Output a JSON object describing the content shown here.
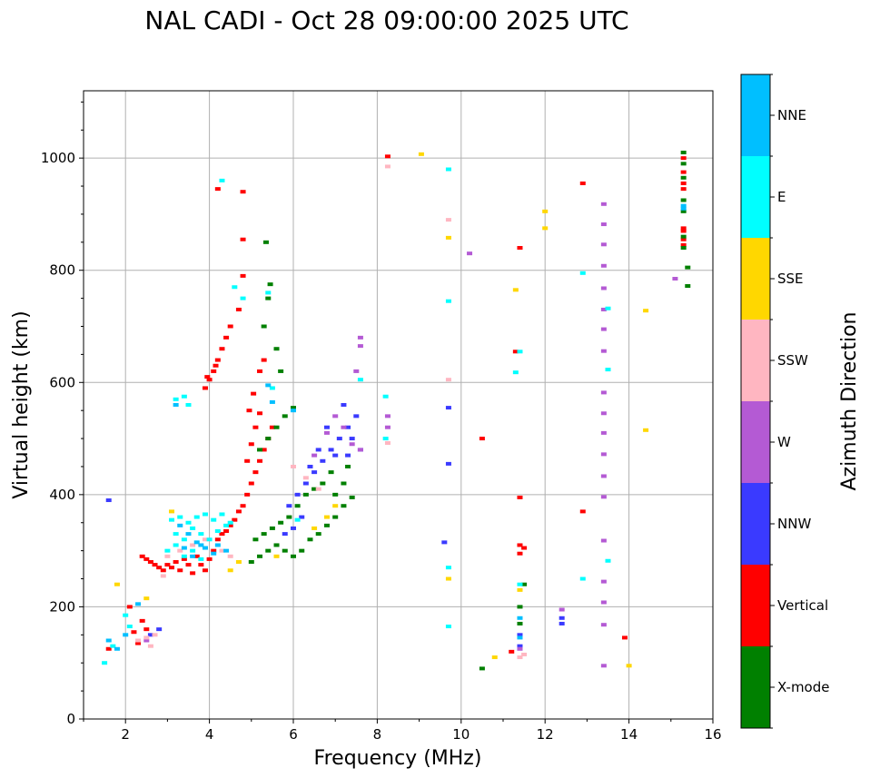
{
  "chart_data": {
    "type": "scatter",
    "title": "NAL CADI - Oct 28 09:00:00 2025 UTC",
    "xlabel": "Frequency (MHz)",
    "ylabel": "Virtual height (km)",
    "xlim": [
      1,
      16
    ],
    "ylim": [
      0,
      1120
    ],
    "xticks": [
      2,
      4,
      6,
      8,
      10,
      12,
      14,
      16
    ],
    "yticks": [
      0,
      200,
      400,
      600,
      800,
      1000
    ],
    "grid": true,
    "colorbar": {
      "title": "Azimuth Direction",
      "categories": [
        "X-mode",
        "Vertical",
        "NNW",
        "W",
        "SSW",
        "SSE",
        "E",
        "NNE"
      ],
      "colors": [
        "#008000",
        "#ff0000",
        "#3a3aff",
        "#b45ad4",
        "#ffb6c1",
        "#ffd700",
        "#00ffff",
        "#00bfff"
      ]
    },
    "series": [
      {
        "name": "Vertical",
        "points": [
          [
            2.4,
            290
          ],
          [
            2.5,
            285
          ],
          [
            2.6,
            280
          ],
          [
            2.7,
            275
          ],
          [
            2.8,
            270
          ],
          [
            2.9,
            265
          ],
          [
            3.0,
            275
          ],
          [
            3.1,
            270
          ],
          [
            3.2,
            280
          ],
          [
            3.3,
            265
          ],
          [
            3.4,
            285
          ],
          [
            3.5,
            275
          ],
          [
            3.6,
            260
          ],
          [
            3.7,
            290
          ],
          [
            3.8,
            275
          ],
          [
            3.9,
            265
          ],
          [
            4.0,
            285
          ],
          [
            4.1,
            300
          ],
          [
            4.2,
            320
          ],
          [
            4.3,
            330
          ],
          [
            4.4,
            335
          ],
          [
            4.5,
            345
          ],
          [
            4.6,
            355
          ],
          [
            4.7,
            370
          ],
          [
            4.8,
            380
          ],
          [
            4.9,
            400
          ],
          [
            5.0,
            420
          ],
          [
            5.1,
            440
          ],
          [
            5.2,
            460
          ],
          [
            5.3,
            480
          ],
          [
            5.4,
            500
          ],
          [
            5.5,
            520
          ],
          [
            4.9,
            460
          ],
          [
            5.0,
            490
          ],
          [
            5.1,
            520
          ],
          [
            5.2,
            545
          ],
          [
            4.95,
            550
          ],
          [
            5.05,
            580
          ],
          [
            5.2,
            620
          ],
          [
            5.3,
            640
          ],
          [
            3.9,
            590
          ],
          [
            4.0,
            605
          ],
          [
            4.1,
            620
          ],
          [
            4.2,
            640
          ],
          [
            4.3,
            660
          ],
          [
            4.4,
            680
          ],
          [
            4.5,
            700
          ],
          [
            4.7,
            730
          ],
          [
            3.95,
            610
          ],
          [
            4.15,
            630
          ],
          [
            4.2,
            945
          ],
          [
            4.8,
            940
          ],
          [
            4.8,
            855
          ],
          [
            4.8,
            790
          ],
          [
            11.4,
            840
          ],
          [
            11.3,
            655
          ],
          [
            10.5,
            500
          ],
          [
            12.9,
            955
          ],
          [
            12.9,
            370
          ],
          [
            13.9,
            145
          ],
          [
            11.4,
            310
          ],
          [
            11.5,
            305
          ],
          [
            11.4,
            295
          ],
          [
            11.4,
            395
          ],
          [
            11.2,
            120
          ],
          [
            8.25,
            1003
          ],
          [
            15.3,
            1000
          ],
          [
            15.3,
            975
          ],
          [
            15.3,
            955
          ],
          [
            15.3,
            945
          ],
          [
            15.3,
            870
          ],
          [
            15.3,
            855
          ],
          [
            15.3,
            845
          ],
          [
            15.3,
            875
          ],
          [
            2.3,
            135
          ],
          [
            2.2,
            155
          ],
          [
            2.4,
            175
          ],
          [
            2.1,
            200
          ],
          [
            1.6,
            125
          ],
          [
            2.5,
            160
          ]
        ]
      },
      {
        "name": "X-mode",
        "points": [
          [
            5.0,
            280
          ],
          [
            5.2,
            290
          ],
          [
            5.4,
            300
          ],
          [
            5.6,
            310
          ],
          [
            5.8,
            300
          ],
          [
            6.0,
            290
          ],
          [
            6.2,
            300
          ],
          [
            6.4,
            320
          ],
          [
            6.6,
            330
          ],
          [
            6.8,
            345
          ],
          [
            7.0,
            360
          ],
          [
            7.2,
            380
          ],
          [
            7.4,
            395
          ],
          [
            5.1,
            320
          ],
          [
            5.3,
            330
          ],
          [
            5.5,
            340
          ],
          [
            5.7,
            350
          ],
          [
            5.9,
            360
          ],
          [
            6.1,
            380
          ],
          [
            6.3,
            400
          ],
          [
            6.5,
            410
          ],
          [
            6.7,
            420
          ],
          [
            5.2,
            480
          ],
          [
            5.4,
            500
          ],
          [
            5.6,
            520
          ],
          [
            5.8,
            540
          ],
          [
            6.0,
            555
          ],
          [
            5.3,
            700
          ],
          [
            5.4,
            750
          ],
          [
            5.45,
            775
          ],
          [
            5.35,
            850
          ],
          [
            5.7,
            620
          ],
          [
            5.6,
            660
          ],
          [
            10.5,
            90
          ],
          [
            11.4,
            200
          ],
          [
            11.5,
            240
          ],
          [
            11.4,
            170
          ],
          [
            15.3,
            1010
          ],
          [
            15.3,
            990
          ],
          [
            15.3,
            965
          ],
          [
            15.3,
            925
          ],
          [
            15.3,
            905
          ],
          [
            15.3,
            860
          ],
          [
            15.3,
            840
          ],
          [
            15.4,
            805
          ],
          [
            15.4,
            772
          ],
          [
            7.0,
            400
          ],
          [
            7.2,
            420
          ],
          [
            6.9,
            440
          ],
          [
            7.3,
            450
          ]
        ]
      },
      {
        "name": "NNW",
        "points": [
          [
            5.9,
            380
          ],
          [
            6.1,
            400
          ],
          [
            6.3,
            420
          ],
          [
            6.5,
            440
          ],
          [
            6.7,
            460
          ],
          [
            6.9,
            480
          ],
          [
            7.1,
            500
          ],
          [
            7.3,
            520
          ],
          [
            7.5,
            540
          ],
          [
            7.2,
            560
          ],
          [
            6.8,
            520
          ],
          [
            6.6,
            480
          ],
          [
            6.4,
            450
          ],
          [
            6.2,
            360
          ],
          [
            6.0,
            340
          ],
          [
            5.8,
            330
          ],
          [
            7.0,
            470
          ],
          [
            7.4,
            500
          ],
          [
            7.6,
            480
          ],
          [
            7.3,
            470
          ],
          [
            2.6,
            150
          ],
          [
            2.8,
            160
          ],
          [
            9.7,
            555
          ],
          [
            9.7,
            455
          ],
          [
            9.6,
            315
          ],
          [
            12.4,
            170
          ],
          [
            12.4,
            180
          ],
          [
            11.4,
            130
          ],
          [
            11.4,
            150
          ],
          [
            1.6,
            390
          ]
        ]
      },
      {
        "name": "W",
        "points": [
          [
            6.5,
            470
          ],
          [
            6.8,
            510
          ],
          [
            7.0,
            540
          ],
          [
            7.2,
            520
          ],
          [
            7.4,
            490
          ],
          [
            7.6,
            480
          ],
          [
            7.5,
            620
          ],
          [
            7.6,
            680
          ],
          [
            7.6,
            665
          ],
          [
            8.25,
            540
          ],
          [
            8.25,
            520
          ],
          [
            13.4,
            918
          ],
          [
            13.4,
            882
          ],
          [
            13.4,
            846
          ],
          [
            13.4,
            808
          ],
          [
            13.4,
            768
          ],
          [
            13.4,
            730
          ],
          [
            13.4,
            695
          ],
          [
            13.4,
            656
          ],
          [
            13.4,
            582
          ],
          [
            13.4,
            545
          ],
          [
            13.4,
            510
          ],
          [
            13.4,
            472
          ],
          [
            13.4,
            433
          ],
          [
            13.4,
            396
          ],
          [
            13.4,
            318
          ],
          [
            13.4,
            245
          ],
          [
            13.4,
            208
          ],
          [
            13.4,
            168
          ],
          [
            13.4,
            95
          ],
          [
            12.4,
            195
          ],
          [
            15.1,
            785
          ],
          [
            10.2,
            830
          ],
          [
            2.5,
            140
          ],
          [
            11.4,
            125
          ]
        ]
      },
      {
        "name": "SSW",
        "points": [
          [
            2.5,
            145
          ],
          [
            2.7,
            150
          ],
          [
            2.3,
            140
          ],
          [
            2.6,
            130
          ],
          [
            3.0,
            290
          ],
          [
            3.3,
            300
          ],
          [
            3.6,
            310
          ],
          [
            3.9,
            320
          ],
          [
            4.3,
            300
          ],
          [
            4.5,
            290
          ],
          [
            6.0,
            450
          ],
          [
            6.3,
            430
          ],
          [
            6.6,
            410
          ],
          [
            8.25,
            492
          ],
          [
            8.25,
            985
          ],
          [
            9.7,
            605
          ],
          [
            9.7,
            890
          ],
          [
            11.4,
            110
          ],
          [
            11.5,
            115
          ],
          [
            2.9,
            255
          ]
        ]
      },
      {
        "name": "SSE",
        "points": [
          [
            4.5,
            265
          ],
          [
            4.7,
            280
          ],
          [
            5.6,
            290
          ],
          [
            6.5,
            340
          ],
          [
            6.8,
            360
          ],
          [
            7.0,
            380
          ],
          [
            9.05,
            1007
          ],
          [
            9.7,
            858
          ],
          [
            9.7,
            250
          ],
          [
            10.8,
            110
          ],
          [
            11.3,
            765
          ],
          [
            12.0,
            905
          ],
          [
            12.0,
            875
          ],
          [
            14.4,
            728
          ],
          [
            14.4,
            515
          ],
          [
            14.0,
            95
          ],
          [
            11.4,
            230
          ],
          [
            2.5,
            215
          ],
          [
            1.8,
            240
          ],
          [
            3.1,
            370
          ]
        ]
      },
      {
        "name": "E",
        "points": [
          [
            3.1,
            355
          ],
          [
            3.3,
            360
          ],
          [
            3.5,
            350
          ],
          [
            3.7,
            360
          ],
          [
            3.9,
            365
          ],
          [
            4.1,
            355
          ],
          [
            4.3,
            365
          ],
          [
            4.5,
            350
          ],
          [
            3.2,
            330
          ],
          [
            3.4,
            320
          ],
          [
            3.6,
            340
          ],
          [
            3.8,
            330
          ],
          [
            4.0,
            320
          ],
          [
            4.2,
            335
          ],
          [
            4.4,
            345
          ],
          [
            3.0,
            300
          ],
          [
            3.2,
            310
          ],
          [
            3.4,
            290
          ],
          [
            3.6,
            300
          ],
          [
            3.8,
            285
          ],
          [
            3.2,
            570
          ],
          [
            3.4,
            575
          ],
          [
            3.5,
            560
          ],
          [
            4.3,
            960
          ],
          [
            4.6,
            770
          ],
          [
            4.8,
            750
          ],
          [
            5.4,
            760
          ],
          [
            5.5,
            590
          ],
          [
            7.6,
            605
          ],
          [
            8.2,
            575
          ],
          [
            8.2,
            500
          ],
          [
            9.7,
            980
          ],
          [
            9.7,
            745
          ],
          [
            9.7,
            270
          ],
          [
            9.7,
            165
          ],
          [
            11.3,
            618
          ],
          [
            11.4,
            655
          ],
          [
            11.4,
            240
          ],
          [
            12.9,
            795
          ],
          [
            12.9,
            250
          ],
          [
            13.5,
            732
          ],
          [
            13.5,
            623
          ],
          [
            13.5,
            282
          ],
          [
            1.5,
            100
          ],
          [
            1.7,
            130
          ],
          [
            2.1,
            165
          ],
          [
            2.0,
            185
          ],
          [
            6.1,
            355
          ]
        ]
      },
      {
        "name": "NNE",
        "points": [
          [
            3.3,
            345
          ],
          [
            3.5,
            330
          ],
          [
            3.7,
            315
          ],
          [
            3.9,
            305
          ],
          [
            4.1,
            295
          ],
          [
            3.4,
            305
          ],
          [
            3.6,
            290
          ],
          [
            3.8,
            310
          ],
          [
            4.2,
            310
          ],
          [
            4.4,
            300
          ],
          [
            5.4,
            595
          ],
          [
            5.5,
            565
          ],
          [
            6.0,
            550
          ],
          [
            3.2,
            560
          ],
          [
            1.6,
            140
          ],
          [
            1.8,
            125
          ],
          [
            2.0,
            150
          ],
          [
            11.4,
            145
          ],
          [
            11.4,
            180
          ],
          [
            15.3,
            915
          ],
          [
            15.3,
            910
          ],
          [
            2.3,
            205
          ]
        ]
      }
    ]
  }
}
